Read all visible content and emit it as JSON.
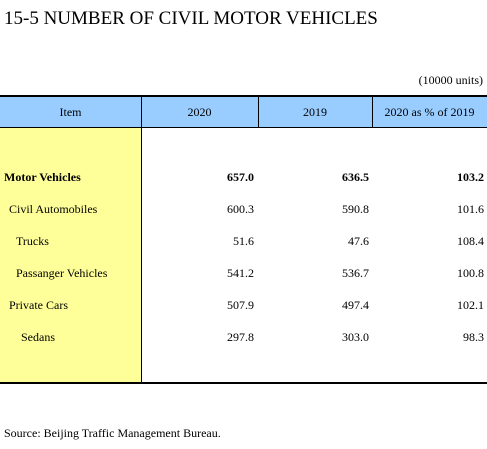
{
  "title": "15-5  NUMBER OF CIVIL MOTOR VEHICLES",
  "unit": "(10000 units)",
  "table": {
    "header": [
      "Item",
      "2020",
      "2019",
      "2020 as % of 2019"
    ],
    "rows": [
      [
        "Motor Vehicles",
        "657.0",
        "636.5",
        "103.2"
      ],
      [
        "Civil Automobiles",
        "600.3",
        "590.8",
        "101.6"
      ],
      [
        "Trucks",
        "51.6",
        "47.6",
        "108.4"
      ],
      [
        "Passanger Vehicles",
        "541.2",
        "536.7",
        "100.8"
      ],
      [
        "Private Cars",
        "507.9",
        "497.4",
        "102.1"
      ],
      [
        "Sedans",
        "297.8",
        "303.0",
        "98.3"
      ]
    ]
  },
  "source": "Source: Beijing Traffic Management Bureau."
}
